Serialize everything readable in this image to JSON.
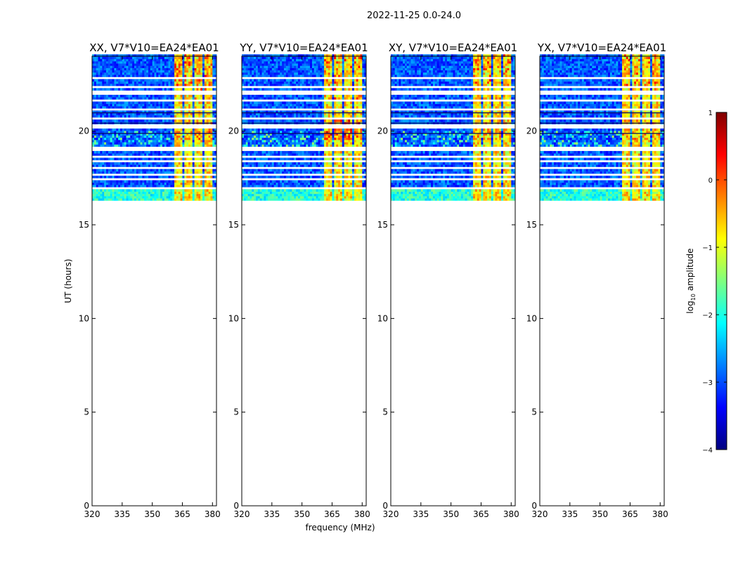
{
  "figure_title": "2022-11-25 0.0-24.0",
  "chart_data": {
    "type": "heatmap",
    "title": "2022-11-25 0.0-24.0",
    "xlabel": "frequency (MHz)",
    "ylabel": "UT (hours)",
    "xlim": [
      320,
      382
    ],
    "ylim": [
      0,
      24
    ],
    "x_ticks": [
      320,
      335,
      350,
      365,
      380
    ],
    "y_ticks": [
      0,
      5,
      10,
      15,
      20
    ],
    "data_time_range_hours": [
      16.3,
      24.0
    ],
    "bright_band_frequencies_mhz": [
      [
        361,
        365
      ],
      [
        366,
        370
      ],
      [
        371,
        375
      ],
      [
        376,
        380
      ]
    ],
    "flagged_times_hours": [
      16.9,
      17.2,
      17.4,
      17.6,
      17.8,
      18.0,
      18.3,
      18.6,
      18.9,
      19.1,
      19.6,
      20.1,
      20.3,
      20.6,
      20.8,
      21.1,
      21.4,
      21.6,
      21.9,
      22.1,
      22.3,
      22.6,
      22.8
    ],
    "panels": [
      {
        "title": "XX, V7*V10=EA24*EA01",
        "band_peak_log_amplitude": 0.2
      },
      {
        "title": "YY, V7*V10=EA24*EA01",
        "band_peak_log_amplitude": 0.8
      },
      {
        "title": "XY, V7*V10=EA24*EA01",
        "band_peak_log_amplitude": 0.0
      },
      {
        "title": "YX, V7*V10=EA24*EA01",
        "band_peak_log_amplitude": 0.1
      }
    ],
    "colorbar": {
      "label_prefix": "log",
      "label_base": "10",
      "label_suffix": " amplitude",
      "range": [
        -4,
        1
      ],
      "ticks": [
        1,
        0,
        -1,
        -2,
        -3,
        -4
      ],
      "colormap": "jet"
    }
  }
}
